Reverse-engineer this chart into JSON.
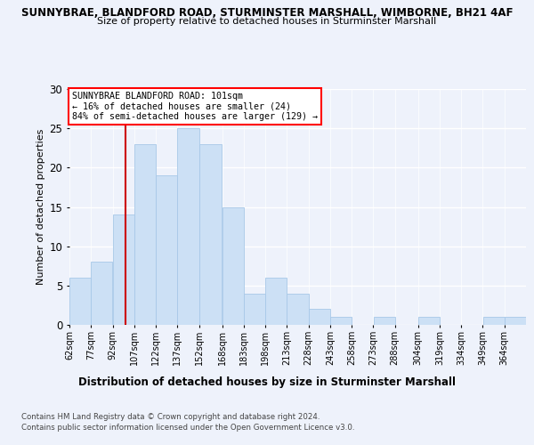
{
  "title1": "SUNNYBRAE, BLANDFORD ROAD, STURMINSTER MARSHALL, WIMBORNE, BH21 4AF",
  "title2": "Size of property relative to detached houses in Sturminster Marshall",
  "xlabel": "Distribution of detached houses by size in Sturminster Marshall",
  "ylabel": "Number of detached properties",
  "annotation_line1": "SUNNYBRAE BLANDFORD ROAD: 101sqm",
  "annotation_line2": "← 16% of detached houses are smaller (24)",
  "annotation_line3": "84% of semi-detached houses are larger (129) →",
  "bar_color": "#cce0f5",
  "bar_edge_color": "#a8c8e8",
  "vline_color": "#cc0000",
  "vline_x": 101,
  "categories": [
    "62sqm",
    "77sqm",
    "92sqm",
    "107sqm",
    "122sqm",
    "137sqm",
    "152sqm",
    "168sqm",
    "183sqm",
    "198sqm",
    "213sqm",
    "228sqm",
    "243sqm",
    "258sqm",
    "273sqm",
    "288sqm",
    "304sqm",
    "319sqm",
    "334sqm",
    "349sqm",
    "364sqm"
  ],
  "bin_edges": [
    62,
    77,
    92,
    107,
    122,
    137,
    152,
    168,
    183,
    198,
    213,
    228,
    243,
    258,
    273,
    288,
    304,
    319,
    334,
    349,
    364,
    379
  ],
  "values": [
    6,
    8,
    14,
    23,
    19,
    25,
    23,
    15,
    4,
    6,
    4,
    2,
    1,
    0,
    1,
    0,
    1,
    0,
    0,
    1,
    1
  ],
  "ylim": [
    0,
    30
  ],
  "yticks": [
    0,
    5,
    10,
    15,
    20,
    25,
    30
  ],
  "footer1": "Contains HM Land Registry data © Crown copyright and database right 2024.",
  "footer2": "Contains public sector information licensed under the Open Government Licence v3.0.",
  "bg_color": "#eef2fb",
  "plot_bg_color": "#eef2fb"
}
